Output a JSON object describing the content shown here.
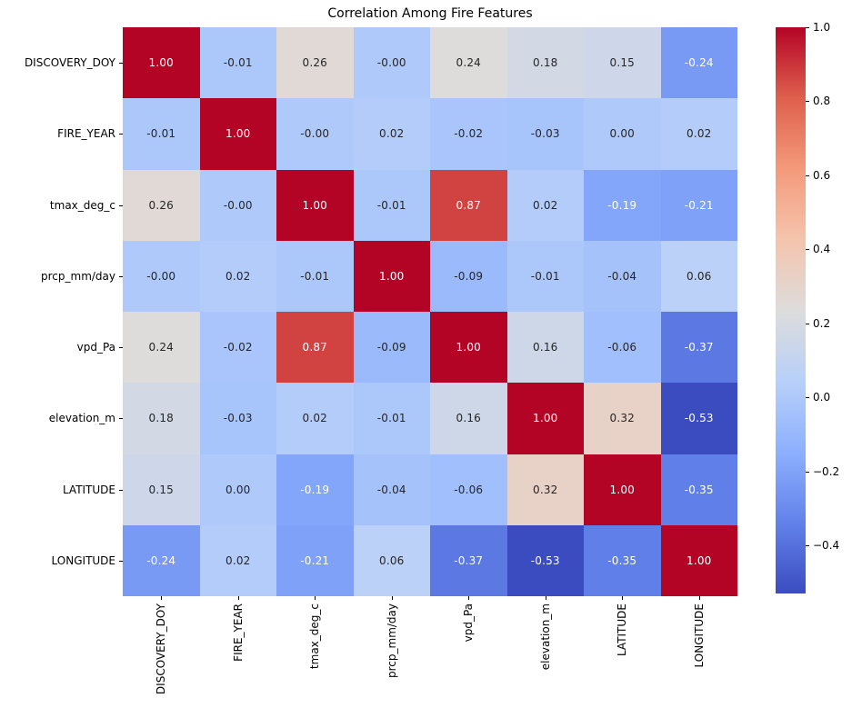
{
  "title": "Correlation Among Fire Features",
  "chart_data": {
    "type": "heatmap",
    "title": "Correlation Among Fire Features",
    "categories": [
      "DISCOVERY_DOY",
      "FIRE_YEAR",
      "tmax_deg_c",
      "prcp_mm/day",
      "vpd_Pa",
      "elevation_m",
      "LATITUDE",
      "LONGITUDE"
    ],
    "values": [
      [
        1.0,
        -0.01,
        0.26,
        -0.0,
        0.24,
        0.18,
        0.15,
        -0.24
      ],
      [
        -0.01,
        1.0,
        -0.0,
        0.02,
        -0.02,
        -0.03,
        0.0,
        0.02
      ],
      [
        0.26,
        -0.0,
        1.0,
        -0.01,
        0.87,
        0.02,
        -0.19,
        -0.21
      ],
      [
        -0.0,
        0.02,
        -0.01,
        1.0,
        -0.09,
        -0.01,
        -0.04,
        0.06
      ],
      [
        0.24,
        -0.02,
        0.87,
        -0.09,
        1.0,
        0.16,
        -0.06,
        -0.37
      ],
      [
        0.18,
        -0.03,
        0.02,
        -0.01,
        0.16,
        1.0,
        0.32,
        -0.53
      ],
      [
        0.15,
        0.0,
        -0.19,
        -0.04,
        -0.06,
        0.32,
        1.0,
        -0.35
      ],
      [
        -0.24,
        0.02,
        -0.21,
        0.06,
        -0.37,
        -0.53,
        -0.35,
        1.0
      ]
    ],
    "cell_labels": [
      [
        "1.00",
        "-0.01",
        "0.26",
        "-0.00",
        "0.24",
        "0.18",
        "0.15",
        "-0.24"
      ],
      [
        "-0.01",
        "1.00",
        "-0.00",
        "0.02",
        "-0.02",
        "-0.03",
        "0.00",
        "0.02"
      ],
      [
        "0.26",
        "-0.00",
        "1.00",
        "-0.01",
        "0.87",
        "0.02",
        "-0.19",
        "-0.21"
      ],
      [
        "-0.00",
        "0.02",
        "-0.01",
        "1.00",
        "-0.09",
        "-0.01",
        "-0.04",
        "0.06"
      ],
      [
        "0.24",
        "-0.02",
        "0.87",
        "-0.09",
        "1.00",
        "0.16",
        "-0.06",
        "-0.37"
      ],
      [
        "0.18",
        "-0.03",
        "0.02",
        "-0.01",
        "0.16",
        "1.00",
        "0.32",
        "-0.53"
      ],
      [
        "0.15",
        "0.00",
        "-0.19",
        "-0.04",
        "-0.06",
        "0.32",
        "1.00",
        "-0.35"
      ],
      [
        "-0.24",
        "0.02",
        "-0.21",
        "0.06",
        "-0.37",
        "-0.53",
        "-0.35",
        "1.00"
      ]
    ],
    "colormap": "coolwarm",
    "vmin": -0.53,
    "vmax": 1.0,
    "colormap_anchors": [
      "#3b4cc0",
      "#6282ea",
      "#8db0fe",
      "#b8d0f9",
      "#dddcdc",
      "#f5c4ad",
      "#f49a7b",
      "#de604d",
      "#b40426"
    ],
    "annotation_text_colors": {
      "dark": "#262626",
      "light": "#ffffff"
    },
    "colorbar": {
      "position": "right",
      "tick_values": [
        1.0,
        0.8,
        0.6,
        0.4,
        0.2,
        0.0,
        -0.2,
        -0.4
      ],
      "tick_labels": [
        "1.0",
        "0.8",
        "0.6",
        "0.4",
        "0.2",
        "0.0",
        "−0.2",
        "−0.4"
      ]
    },
    "grid": false,
    "legend_position": "right"
  }
}
